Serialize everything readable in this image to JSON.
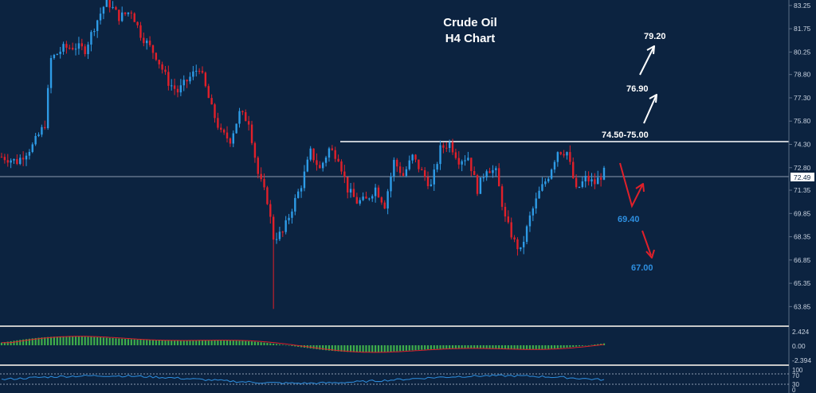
{
  "chart_data": {
    "type": "candlestick",
    "title": "Crude Oil",
    "subtitle": "H4 Chart",
    "current_price": "72.49",
    "colors": {
      "background": "#0c2340",
      "bull": "#2e9be6",
      "bear": "#e0202a",
      "macd_hist": "#3fae4a",
      "macd_signal": "#e0202a",
      "rsi_line": "#2e8fe0",
      "panel_border": "#c8c8c8",
      "level_line": "#ffffff",
      "target_up": "#ffffff",
      "target_down": "#2e8fe0"
    },
    "price_axis": {
      "ticks": [
        "83.25",
        "81.75",
        "80.25",
        "78.80",
        "77.30",
        "75.80",
        "74.30",
        "72.80",
        "71.35",
        "69.85",
        "68.35",
        "66.85",
        "65.35",
        "63.85"
      ],
      "ylim": [
        63.1,
        83.5
      ]
    },
    "close_path": [
      [
        0,
        73.5
      ],
      [
        5,
        73.2
      ],
      [
        10,
        74.2
      ],
      [
        14,
        75.6
      ],
      [
        16,
        79.8
      ],
      [
        20,
        80.5
      ],
      [
        24,
        80.6
      ],
      [
        27,
        80.4
      ],
      [
        30,
        81.9
      ],
      [
        34,
        83.6
      ],
      [
        38,
        82.5
      ],
      [
        42,
        82.9
      ],
      [
        45,
        81.4
      ],
      [
        50,
        80.0
      ],
      [
        54,
        78.3
      ],
      [
        57,
        77.7
      ],
      [
        60,
        78.4
      ],
      [
        64,
        79.3
      ],
      [
        68,
        76.6
      ],
      [
        71,
        75.0
      ],
      [
        74,
        74.6
      ],
      [
        77,
        76.3
      ],
      [
        80,
        75.8
      ],
      [
        83,
        72.4
      ],
      [
        86,
        70.7
      ],
      [
        88,
        68.3
      ],
      [
        91,
        68.6
      ],
      [
        94,
        70.2
      ],
      [
        97,
        71.7
      ],
      [
        100,
        73.8
      ],
      [
        103,
        72.7
      ],
      [
        106,
        74.0
      ],
      [
        109,
        73.5
      ],
      [
        112,
        71.4
      ],
      [
        115,
        70.6
      ],
      [
        118,
        70.7
      ],
      [
        121,
        71.5
      ],
      [
        124,
        70.4
      ],
      [
        127,
        73.2
      ],
      [
        130,
        72.3
      ],
      [
        133,
        73.5
      ],
      [
        136,
        72.5
      ],
      [
        139,
        71.6
      ],
      [
        142,
        74.0
      ],
      [
        145,
        74.4
      ],
      [
        148,
        73.3
      ],
      [
        151,
        73.5
      ],
      [
        154,
        71.4
      ],
      [
        157,
        72.8
      ],
      [
        160,
        72.5
      ],
      [
        163,
        69.5
      ],
      [
        166,
        68.0
      ],
      [
        168,
        67.4
      ],
      [
        171,
        69.6
      ],
      [
        174,
        71.2
      ],
      [
        177,
        72.3
      ],
      [
        180,
        73.9
      ],
      [
        183,
        73.8
      ],
      [
        186,
        71.3
      ],
      [
        189,
        72.1
      ],
      [
        192,
        71.8
      ],
      [
        195,
        72.5
      ]
    ],
    "annotations": [
      {
        "label": "74.50-75.00",
        "kind": "resistance-level",
        "price": 74.65
      },
      {
        "label": "79.20",
        "kind": "upside-target"
      },
      {
        "label": "76.90",
        "kind": "upside-target"
      },
      {
        "label": "69.40",
        "kind": "downside-target"
      },
      {
        "label": "67.00",
        "kind": "downside-target"
      }
    ],
    "macd_panel": {
      "ticks": [
        "2.424",
        "0.00",
        "-2.394"
      ]
    },
    "rsi_panel": {
      "ticks": [
        "100",
        "70",
        "30",
        "0"
      ],
      "guide_levels": [
        70,
        30
      ]
    }
  }
}
